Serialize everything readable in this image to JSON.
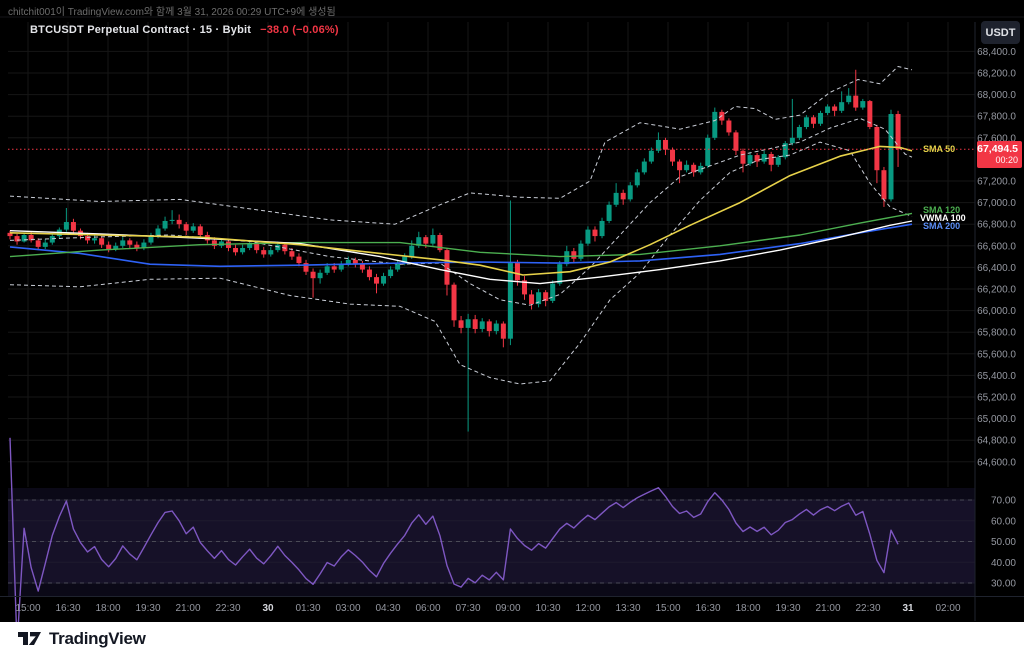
{
  "attribution": "chitchit001이 TradingView.com와 함께 3월 31, 2026 00:29 UTC+9에 생성됨",
  "header": {
    "title": "BTCUSDT Perpetual Contract · 15 · Bybit",
    "change": "−38.0 (−0.06%)",
    "currency_button": "USDT"
  },
  "price_label": {
    "price": "67,494.5",
    "countdown": "00:20"
  },
  "overlay_labels": {
    "sma50": "SMA 50",
    "sma120": "SMA 120",
    "vwma100": "VWMA 100",
    "sma200": "SMA 200"
  },
  "footer": {
    "logo_text": "TradingView"
  },
  "chart_data": {
    "type": "candlestick",
    "title": "BTCUSDT Perpetual Contract",
    "interval": "15",
    "exchange": "Bybit",
    "last_price": 67494.5,
    "change": -38.0,
    "change_pct": -0.06,
    "y_axis": {
      "min": 64390,
      "max": 68650,
      "ticks": [
        68400,
        68200,
        68000,
        67800,
        67600,
        67200,
        67000,
        66800,
        66600,
        66400,
        66200,
        66000,
        65800,
        65600,
        65400,
        65200,
        65000,
        64800,
        64600
      ]
    },
    "x_axis": {
      "labels": [
        "15:00",
        "16:30",
        "18:00",
        "19:30",
        "21:00",
        "22:30",
        "30",
        "01:30",
        "03:00",
        "04:30",
        "06:00",
        "07:30",
        "09:00",
        "10:30",
        "12:00",
        "13:30",
        "15:00",
        "16:30",
        "18:00",
        "19:30",
        "21:00",
        "22:30",
        "31",
        "02:00"
      ],
      "bold_labels": [
        "30",
        "31"
      ]
    },
    "candles": [
      [
        66720,
        66740,
        66660,
        66690
      ],
      [
        66690,
        66710,
        66610,
        66640
      ],
      [
        66640,
        66720,
        66630,
        66700
      ],
      [
        66700,
        66730,
        66630,
        66650
      ],
      [
        66650,
        66670,
        66560,
        66590
      ],
      [
        66590,
        66660,
        66570,
        66630
      ],
      [
        66630,
        66710,
        66610,
        66690
      ],
      [
        66690,
        66770,
        66670,
        66750
      ],
      [
        66750,
        66950,
        66730,
        66820
      ],
      [
        66820,
        66850,
        66710,
        66740
      ],
      [
        66740,
        66760,
        66660,
        66690
      ],
      [
        66690,
        66720,
        66620,
        66650
      ],
      [
        66650,
        66700,
        66620,
        66670
      ],
      [
        66670,
        66690,
        66580,
        66610
      ],
      [
        66610,
        66640,
        66540,
        66570
      ],
      [
        66570,
        66630,
        66550,
        66600
      ],
      [
        66600,
        66680,
        66580,
        66650
      ],
      [
        66650,
        66670,
        66580,
        66610
      ],
      [
        66610,
        66640,
        66550,
        66580
      ],
      [
        66580,
        66660,
        66560,
        66630
      ],
      [
        66630,
        66720,
        66610,
        66690
      ],
      [
        66690,
        66790,
        66670,
        66760
      ],
      [
        66760,
        66870,
        66740,
        66830
      ],
      [
        66830,
        66930,
        66800,
        66840
      ],
      [
        66840,
        66890,
        66760,
        66800
      ],
      [
        66800,
        66820,
        66700,
        66740
      ],
      [
        66740,
        66810,
        66720,
        66780
      ],
      [
        66780,
        66800,
        66670,
        66700
      ],
      [
        66700,
        66730,
        66620,
        66650
      ],
      [
        66650,
        66680,
        66570,
        66600
      ],
      [
        66600,
        66670,
        66580,
        66640
      ],
      [
        66640,
        66660,
        66550,
        66580
      ],
      [
        66580,
        66610,
        66510,
        66540
      ],
      [
        66540,
        66610,
        66520,
        66580
      ],
      [
        66580,
        66650,
        66560,
        66620
      ],
      [
        66620,
        66640,
        66530,
        66560
      ],
      [
        66560,
        66590,
        66490,
        66520
      ],
      [
        66520,
        66590,
        66500,
        66560
      ],
      [
        66560,
        66640,
        66540,
        66610
      ],
      [
        66610,
        66630,
        66520,
        66550
      ],
      [
        66550,
        66580,
        66470,
        66500
      ],
      [
        66500,
        66530,
        66410,
        66440
      ],
      [
        66440,
        66470,
        66330,
        66360
      ],
      [
        66360,
        66390,
        66120,
        66300
      ],
      [
        66300,
        66380,
        66250,
        66350
      ],
      [
        66350,
        66440,
        66330,
        66410
      ],
      [
        66410,
        66440,
        66350,
        66380
      ],
      [
        66380,
        66460,
        66360,
        66430
      ],
      [
        66430,
        66500,
        66410,
        66470
      ],
      [
        66470,
        66490,
        66400,
        66430
      ],
      [
        66430,
        66460,
        66350,
        66380
      ],
      [
        66380,
        66410,
        66280,
        66310
      ],
      [
        66310,
        66340,
        66160,
        66250
      ],
      [
        66250,
        66350,
        66230,
        66320
      ],
      [
        66320,
        66410,
        66300,
        66380
      ],
      [
        66380,
        66470,
        66360,
        66440
      ],
      [
        66440,
        66530,
        66420,
        66500
      ],
      [
        66500,
        66650,
        66480,
        66600
      ],
      [
        66600,
        66730,
        66580,
        66680
      ],
      [
        66680,
        66700,
        66580,
        66620
      ],
      [
        66620,
        66760,
        66600,
        66700
      ],
      [
        66700,
        66720,
        66540,
        66560
      ],
      [
        66560,
        66580,
        66140,
        66240
      ],
      [
        66240,
        66260,
        65850,
        65910
      ],
      [
        65910,
        65950,
        65790,
        65840
      ],
      [
        65840,
        65970,
        64880,
        65920
      ],
      [
        65920,
        65960,
        65790,
        65830
      ],
      [
        65830,
        65930,
        65800,
        65900
      ],
      [
        65900,
        65920,
        65760,
        65810
      ],
      [
        65810,
        65910,
        65780,
        65880
      ],
      [
        65880,
        65900,
        65660,
        65740
      ],
      [
        65740,
        67020,
        65680,
        66440
      ],
      [
        66440,
        66470,
        66230,
        66280
      ],
      [
        66280,
        66320,
        66100,
        66150
      ],
      [
        66150,
        66190,
        66010,
        66060
      ],
      [
        66060,
        66200,
        66030,
        66170
      ],
      [
        66170,
        66190,
        66040,
        66090
      ],
      [
        66090,
        66280,
        66070,
        66250
      ],
      [
        66250,
        66460,
        66230,
        66430
      ],
      [
        66430,
        66600,
        66410,
        66550
      ],
      [
        66550,
        66580,
        66440,
        66480
      ],
      [
        66480,
        66650,
        66460,
        66620
      ],
      [
        66620,
        66780,
        66600,
        66750
      ],
      [
        66750,
        66780,
        66640,
        66690
      ],
      [
        66690,
        66860,
        66670,
        66830
      ],
      [
        66830,
        67010,
        66810,
        66980
      ],
      [
        66980,
        67180,
        66960,
        67090
      ],
      [
        67090,
        67120,
        66980,
        67030
      ],
      [
        67030,
        67190,
        67010,
        67160
      ],
      [
        67160,
        67310,
        67140,
        67280
      ],
      [
        67280,
        67410,
        67260,
        67380
      ],
      [
        67380,
        67510,
        67360,
        67480
      ],
      [
        67480,
        67650,
        67460,
        67580
      ],
      [
        67580,
        67600,
        67440,
        67490
      ],
      [
        67490,
        67510,
        67340,
        67380
      ],
      [
        67380,
        67400,
        67180,
        67300
      ],
      [
        67300,
        67390,
        67280,
        67350
      ],
      [
        67350,
        67370,
        67240,
        67280
      ],
      [
        67280,
        67370,
        67260,
        67340
      ],
      [
        67340,
        67630,
        67320,
        67600
      ],
      [
        67600,
        67880,
        67580,
        67840
      ],
      [
        67840,
        67860,
        67720,
        67760
      ],
      [
        67760,
        67780,
        67620,
        67650
      ],
      [
        67650,
        67670,
        67440,
        67480
      ],
      [
        67480,
        67500,
        67280,
        67360
      ],
      [
        67360,
        67470,
        67340,
        67440
      ],
      [
        67440,
        67460,
        67330,
        67380
      ],
      [
        67380,
        67480,
        67360,
        67450
      ],
      [
        67450,
        67470,
        67290,
        67350
      ],
      [
        67350,
        67440,
        67330,
        67420
      ],
      [
        67420,
        67570,
        67400,
        67550
      ],
      [
        67550,
        67960,
        67530,
        67600
      ],
      [
        67600,
        67720,
        67580,
        67700
      ],
      [
        67700,
        67810,
        67680,
        67790
      ],
      [
        67790,
        67810,
        67690,
        67730
      ],
      [
        67730,
        67850,
        67710,
        67830
      ],
      [
        67830,
        67910,
        67810,
        67890
      ],
      [
        67890,
        67910,
        67800,
        67850
      ],
      [
        67850,
        68030,
        67830,
        67930
      ],
      [
        67930,
        68060,
        67910,
        67990
      ],
      [
        67990,
        68230,
        67850,
        67880
      ],
      [
        67880,
        67960,
        67860,
        67940
      ],
      [
        67940,
        67950,
        67680,
        67700
      ],
      [
        67700,
        67720,
        67180,
        67300
      ],
      [
        67300,
        67330,
        66960,
        67030
      ],
      [
        67030,
        67860,
        67010,
        67820
      ],
      [
        67820,
        67850,
        67330,
        67494.5
      ]
    ],
    "overlays": {
      "bb_upper": [
        [
          10,
          67060
        ],
        [
          100,
          67010
        ],
        [
          180,
          67030
        ],
        [
          260,
          66930
        ],
        [
          330,
          66840
        ],
        [
          395,
          66800
        ],
        [
          440,
          66980
        ],
        [
          470,
          67090
        ],
        [
          520,
          67050
        ],
        [
          560,
          67040
        ],
        [
          590,
          67200
        ],
        [
          605,
          67560
        ],
        [
          640,
          67740
        ],
        [
          680,
          67680
        ],
        [
          715,
          67760
        ],
        [
          735,
          67890
        ],
        [
          755,
          67870
        ],
        [
          775,
          67770
        ],
        [
          800,
          67810
        ],
        [
          830,
          68020
        ],
        [
          858,
          68140
        ],
        [
          880,
          68100
        ],
        [
          898,
          68260
        ],
        [
          912,
          68230
        ]
      ],
      "bb_basis": [
        [
          10,
          66650
        ],
        [
          90,
          66680
        ],
        [
          170,
          66700
        ],
        [
          250,
          66640
        ],
        [
          330,
          66500
        ],
        [
          400,
          66430
        ],
        [
          440,
          66440
        ],
        [
          470,
          66250
        ],
        [
          500,
          66100
        ],
        [
          530,
          66050
        ],
        [
          560,
          66150
        ],
        [
          590,
          66400
        ],
        [
          620,
          66700
        ],
        [
          650,
          67000
        ],
        [
          680,
          67240
        ],
        [
          710,
          67340
        ],
        [
          740,
          67440
        ],
        [
          770,
          67500
        ],
        [
          800,
          67560
        ],
        [
          830,
          67690
        ],
        [
          860,
          67780
        ],
        [
          885,
          67680
        ],
        [
          905,
          67450
        ],
        [
          912,
          67420
        ]
      ],
      "bb_lower": [
        [
          10,
          66240
        ],
        [
          80,
          66220
        ],
        [
          150,
          66290
        ],
        [
          220,
          66300
        ],
        [
          290,
          66140
        ],
        [
          350,
          66060
        ],
        [
          400,
          66040
        ],
        [
          435,
          65900
        ],
        [
          460,
          65500
        ],
        [
          490,
          65380
        ],
        [
          520,
          65320
        ],
        [
          550,
          65350
        ],
        [
          580,
          65700
        ],
        [
          610,
          66100
        ],
        [
          640,
          66350
        ],
        [
          670,
          66700
        ],
        [
          700,
          67020
        ],
        [
          730,
          67280
        ],
        [
          760,
          67400
        ],
        [
          790,
          67440
        ],
        [
          820,
          67560
        ],
        [
          850,
          67480
        ],
        [
          870,
          67180
        ],
        [
          890,
          66960
        ],
        [
          912,
          66870
        ]
      ],
      "sma50": [
        [
          10,
          66720
        ],
        [
          100,
          66700
        ],
        [
          200,
          66680
        ],
        [
          300,
          66610
        ],
        [
          380,
          66530
        ],
        [
          440,
          66470
        ],
        [
          480,
          66420
        ],
        [
          523,
          66330
        ],
        [
          570,
          66360
        ],
        [
          610,
          66450
        ],
        [
          650,
          66610
        ],
        [
          690,
          66790
        ],
        [
          740,
          67000
        ],
        [
          790,
          67250
        ],
        [
          840,
          67430
        ],
        [
          880,
          67520
        ],
        [
          900,
          67510
        ],
        [
          912,
          67480
        ]
      ],
      "vwma100": [
        [
          10,
          66740
        ],
        [
          100,
          66710
        ],
        [
          200,
          66670
        ],
        [
          300,
          66620
        ],
        [
          380,
          66500
        ],
        [
          440,
          66380
        ],
        [
          490,
          66290
        ],
        [
          540,
          66250
        ],
        [
          600,
          66310
        ],
        [
          660,
          66380
        ],
        [
          720,
          66460
        ],
        [
          780,
          66560
        ],
        [
          840,
          66680
        ],
        [
          890,
          66790
        ],
        [
          912,
          66830
        ]
      ],
      "sma120": [
        [
          10,
          66500
        ],
        [
          100,
          66560
        ],
        [
          200,
          66610
        ],
        [
          300,
          66630
        ],
        [
          400,
          66630
        ],
        [
          480,
          66540
        ],
        [
          560,
          66500
        ],
        [
          640,
          66520
        ],
        [
          720,
          66600
        ],
        [
          800,
          66700
        ],
        [
          860,
          66810
        ],
        [
          912,
          66900
        ]
      ],
      "sma200": [
        [
          10,
          66590
        ],
        [
          80,
          66530
        ],
        [
          150,
          66430
        ],
        [
          220,
          66410
        ],
        [
          300,
          66420
        ],
        [
          400,
          66440
        ],
        [
          480,
          66450
        ],
        [
          560,
          66440
        ],
        [
          640,
          66460
        ],
        [
          720,
          66520
        ],
        [
          800,
          66620
        ],
        [
          860,
          66720
        ],
        [
          912,
          66800
        ]
      ]
    },
    "rsi": {
      "period": 14,
      "levels": [
        70,
        50,
        30
      ],
      "ticks": [
        70,
        60,
        50,
        40,
        30
      ]
    },
    "colors": {
      "up": "#089981",
      "down": "#f23645",
      "bb": "#c9cdd6",
      "sma50": "#e7d24a",
      "vwma100": "#ffffff",
      "sma120": "#4caf50",
      "sma200": "#2e62f6",
      "rsi": "#7e57c2",
      "rsi_band": "rgba(126,87,194,0.10)",
      "grid": "#161616",
      "rsi_grid": "#1e1a2e",
      "axis_text": "#9598a1",
      "accent_red": "#f23645",
      "level_dash": "#4b4b57",
      "separator": "#1f232e"
    },
    "layout": {
      "grid": true,
      "legend": "overlay-left",
      "panes": [
        "price",
        "rsi"
      ]
    }
  }
}
